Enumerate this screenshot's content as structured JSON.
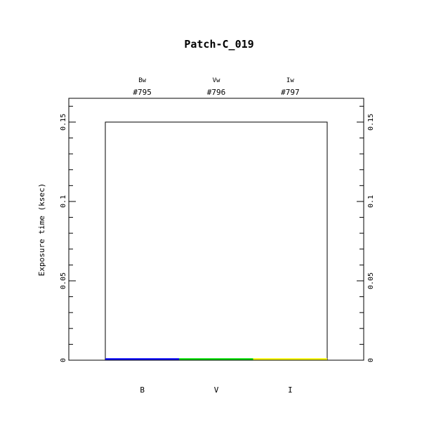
{
  "chart_data": {
    "type": "bar",
    "title": "Patch-C_019",
    "ylabel": "Exposure time (ksec)",
    "xlabel": "",
    "ylim": [
      0,
      0.165
    ],
    "yticks": [
      0,
      0.05,
      0.1,
      0.15
    ],
    "ytick_labels": [
      "0",
      "0.05",
      "0.1",
      "0.15"
    ],
    "categories": [
      "B",
      "V",
      "I"
    ],
    "filters": [
      "Bw",
      "Vw",
      "Iw"
    ],
    "filter_ids": [
      "#795",
      "#796",
      "#797"
    ],
    "values": [
      0.001,
      0.001,
      0.001
    ],
    "colors": [
      "#0000ff",
      "#00dd00",
      "#ffff00"
    ],
    "outline_value": 0.15,
    "grid": false
  }
}
